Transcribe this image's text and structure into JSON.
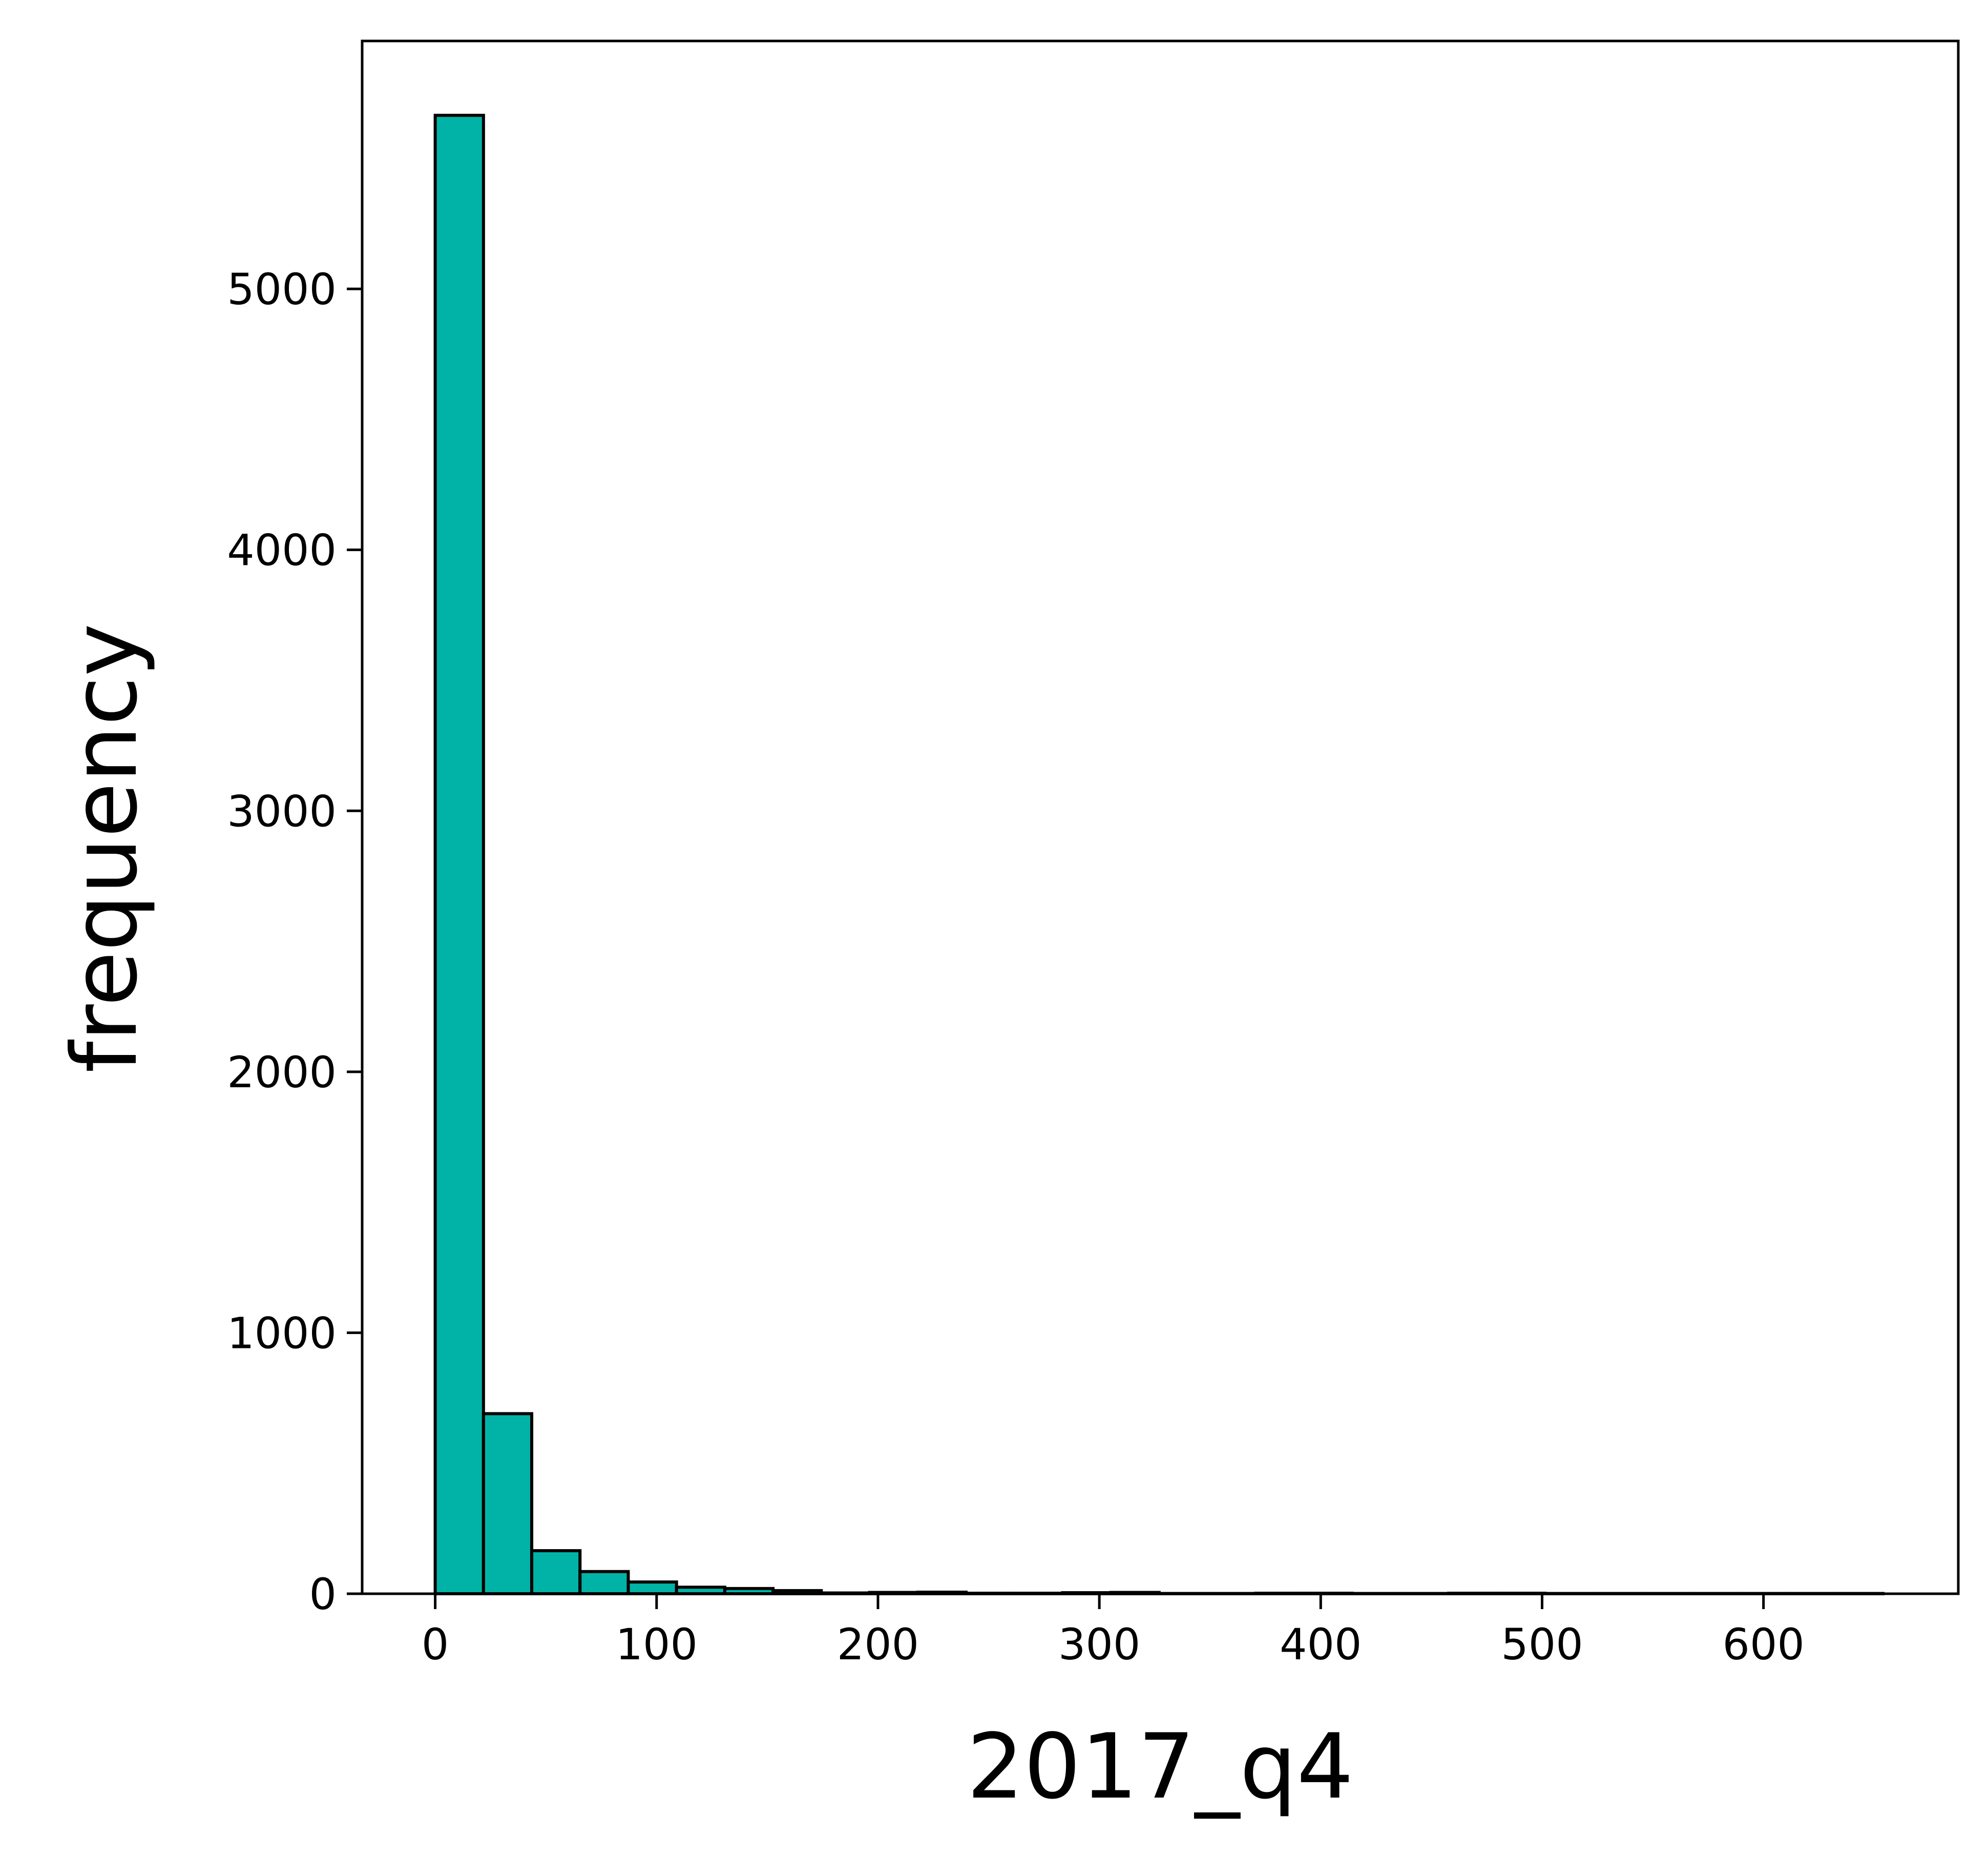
{
  "colors": {
    "bar_fill": "#00b3a6",
    "bar_edge": "#000000",
    "background": "#ffffff",
    "axis": "#000000"
  },
  "chart_data": {
    "type": "bar",
    "subtype": "histogram",
    "xlabel": "2017_q4",
    "ylabel": "frequency",
    "xlim": [
      -33,
      688
    ],
    "ylim": [
      0,
      5950
    ],
    "x_ticks": [
      0,
      100,
      200,
      300,
      400,
      500,
      600
    ],
    "x_tick_labels": [
      "0",
      "100",
      "200",
      "300",
      "400",
      "500",
      "600"
    ],
    "y_ticks": [
      0,
      1000,
      2000,
      3000,
      4000,
      5000
    ],
    "y_tick_labels": [
      "0",
      "1000",
      "2000",
      "3000",
      "4000",
      "5000"
    ],
    "grid": false,
    "legend": false,
    "bins": [
      {
        "x0": 0,
        "x1": 21.8,
        "count": 5665
      },
      {
        "x0": 21.8,
        "x1": 43.6,
        "count": 690
      },
      {
        "x0": 43.6,
        "x1": 65.4,
        "count": 165
      },
      {
        "x0": 65.4,
        "x1": 87.2,
        "count": 85
      },
      {
        "x0": 87.2,
        "x1": 109.0,
        "count": 45
      },
      {
        "x0": 109.0,
        "x1": 130.8,
        "count": 25
      },
      {
        "x0": 130.8,
        "x1": 152.6,
        "count": 20
      },
      {
        "x0": 152.6,
        "x1": 174.4,
        "count": 12
      },
      {
        "x0": 174.4,
        "x1": 196.2,
        "count": 3
      },
      {
        "x0": 196.2,
        "x1": 218.0,
        "count": 5
      },
      {
        "x0": 218.0,
        "x1": 239.8,
        "count": 6
      },
      {
        "x0": 239.8,
        "x1": 261.6,
        "count": 2
      },
      {
        "x0": 261.6,
        "x1": 283.4,
        "count": 2
      },
      {
        "x0": 283.4,
        "x1": 305.2,
        "count": 4
      },
      {
        "x0": 305.2,
        "x1": 327.0,
        "count": 5
      },
      {
        "x0": 327.0,
        "x1": 348.8,
        "count": 1
      },
      {
        "x0": 348.8,
        "x1": 370.6,
        "count": 1
      },
      {
        "x0": 370.6,
        "x1": 392.4,
        "count": 2
      },
      {
        "x0": 392.4,
        "x1": 414.2,
        "count": 2
      },
      {
        "x0": 414.2,
        "x1": 436.0,
        "count": 1
      },
      {
        "x0": 436.0,
        "x1": 457.8,
        "count": 1
      },
      {
        "x0": 457.8,
        "x1": 479.6,
        "count": 2
      },
      {
        "x0": 479.6,
        "x1": 501.4,
        "count": 2
      },
      {
        "x0": 501.4,
        "x1": 523.2,
        "count": 1
      },
      {
        "x0": 523.2,
        "x1": 545.0,
        "count": 1
      },
      {
        "x0": 545.0,
        "x1": 566.8,
        "count": 1
      },
      {
        "x0": 566.8,
        "x1": 588.6,
        "count": 1
      },
      {
        "x0": 588.6,
        "x1": 610.4,
        "count": 1
      },
      {
        "x0": 610.4,
        "x1": 632.2,
        "count": 1
      },
      {
        "x0": 632.2,
        "x1": 654.0,
        "count": 1
      }
    ]
  }
}
